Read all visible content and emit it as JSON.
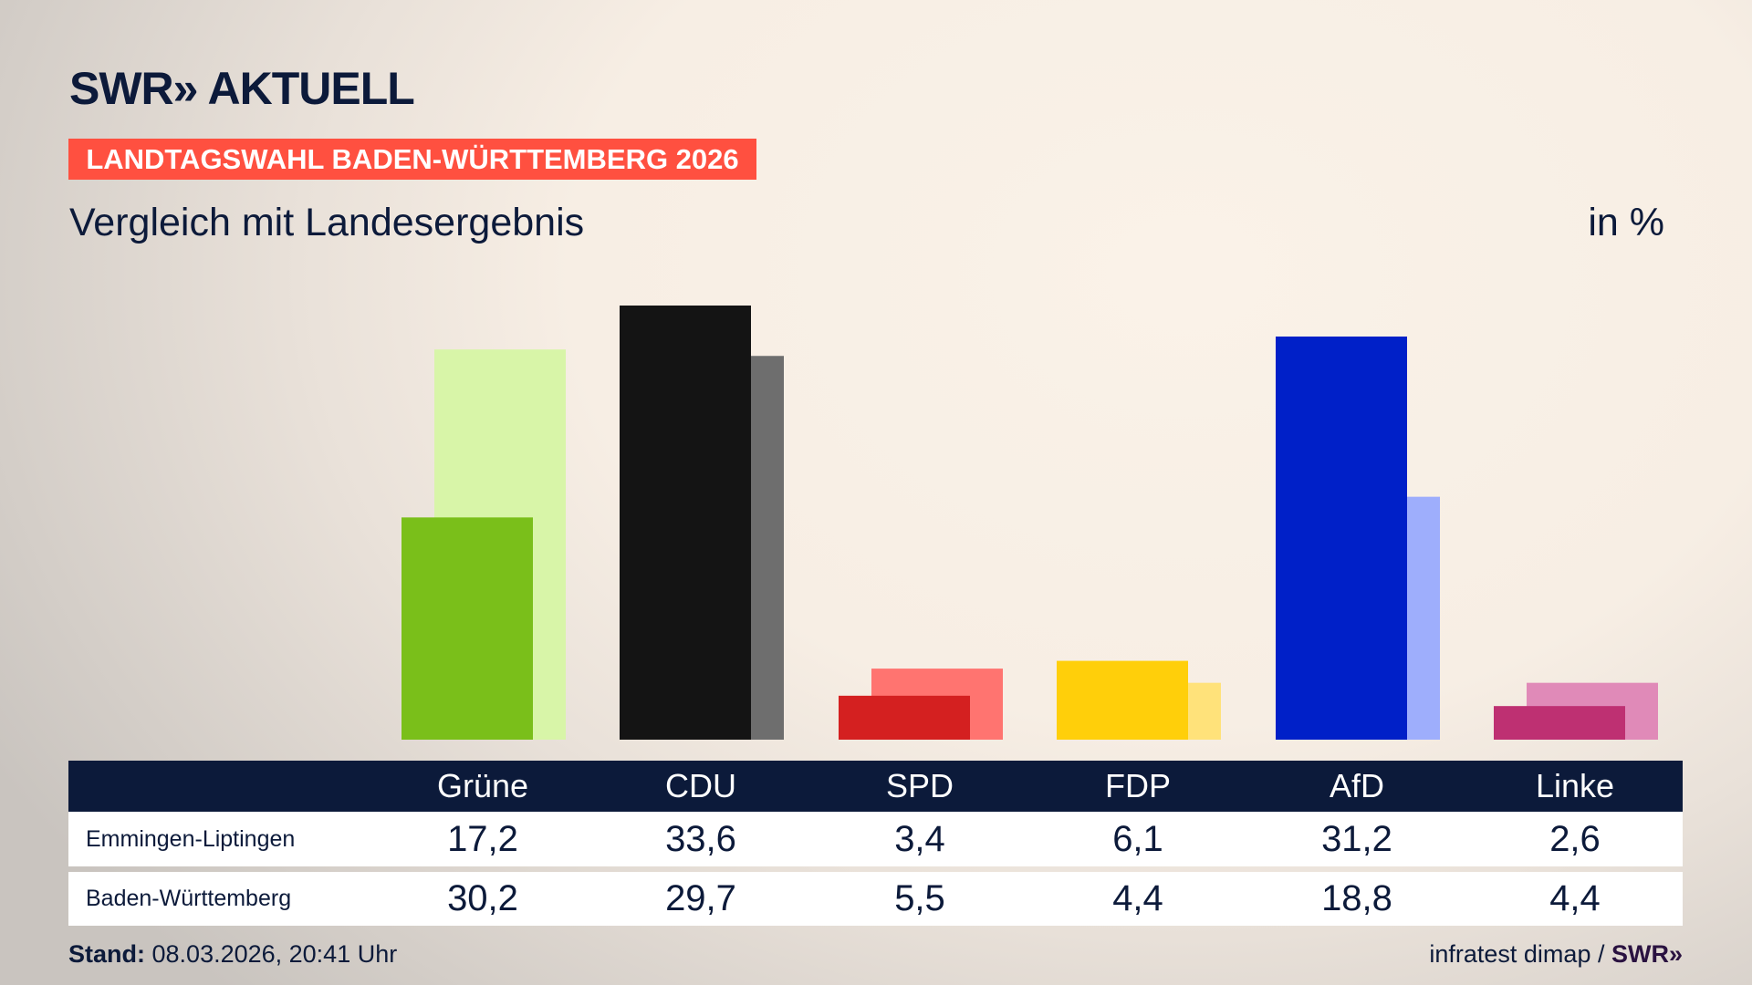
{
  "header": {
    "logo": "SWR» AKTUELL",
    "banner": "LANDTAGSWAHL BADEN-WÜRTTEMBERG 2026",
    "subtitle": "Vergleich mit Landesergebnis",
    "unit": "in %"
  },
  "chart_data": {
    "type": "bar",
    "title": "Vergleich mit Landesergebnis",
    "ylabel": "in %",
    "ylim": [
      0,
      33.6
    ],
    "grid": false,
    "categories": [
      "Grüne",
      "CDU",
      "SPD",
      "FDP",
      "AfD",
      "Linke"
    ],
    "series": [
      {
        "name": "Emmingen-Liptingen",
        "values": [
          17.2,
          33.6,
          3.4,
          6.1,
          31.2,
          2.6
        ],
        "colors": [
          "#7abf1a",
          "#141414",
          "#d42020",
          "#ffcf0a",
          "#0020c8",
          "#be3072"
        ]
      },
      {
        "name": "Baden-Württemberg",
        "values": [
          30.2,
          29.7,
          5.5,
          4.4,
          18.8,
          4.4
        ],
        "colors": [
          "#d8f5a8",
          "#6e6e6e",
          "#ff7470",
          "#ffe27a",
          "#9eaefc",
          "#e08ab8"
        ]
      }
    ]
  },
  "table": {
    "columns": [
      "Grüne",
      "CDU",
      "SPD",
      "FDP",
      "AfD",
      "Linke"
    ],
    "rows": [
      {
        "label": "Emmingen-Liptingen",
        "values": [
          "17,2",
          "33,6",
          "3,4",
          "6,1",
          "31,2",
          "2,6"
        ]
      },
      {
        "label": "Baden-Württemberg",
        "values": [
          "30,2",
          "29,7",
          "5,5",
          "4,4",
          "18,8",
          "4,4"
        ]
      }
    ]
  },
  "footer": {
    "stand_label": "Stand:",
    "stand_value": "08.03.2026, 20:41 Uhr",
    "source": "infratest dimap /",
    "source_logo": "SWR»"
  },
  "colors": {
    "navy": "#0c1a3a",
    "banner": "#ff5040"
  }
}
